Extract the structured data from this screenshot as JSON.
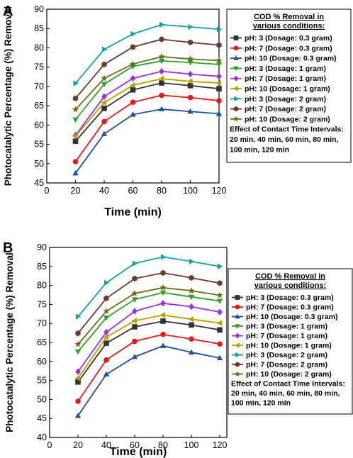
{
  "chart_data": [
    {
      "type": "line",
      "panel": "A",
      "xlabel": "Time (min)",
      "ylabel": "Photocatalytic Percentage (%) Removal",
      "xlim": [
        0,
        120
      ],
      "ylim": [
        45,
        90
      ],
      "xticks": [
        0,
        20,
        40,
        60,
        80,
        100,
        120
      ],
      "yticks": [
        45,
        50,
        55,
        60,
        65,
        70,
        75,
        80,
        85,
        90
      ],
      "grid": false,
      "legend_position": "right",
      "legend_title": [
        "COD % Removal in",
        "various conditions:"
      ],
      "legend_note": [
        "Effect of Contact Time Intervals:",
        "20 min, 40 min, 60 min, 80 min,",
        "100 min, 120 min"
      ],
      "x": [
        20,
        40,
        60,
        80,
        100,
        120
      ],
      "series": [
        {
          "name": "pH: 3 (Dosage: 0.3 gram)",
          "color": "#333333",
          "marker": "square",
          "values": [
            55.8,
            64.3,
            69.1,
            70.9,
            70.2,
            69.4
          ]
        },
        {
          "name": "pH: 7 (Dosage: 0.3 gram)",
          "color": "#e41a1c",
          "marker": "circle",
          "values": [
            50.5,
            60.9,
            65.9,
            67.7,
            67.1,
            66.3
          ]
        },
        {
          "name": "pH: 10 (Dosage: 0.3 gram)",
          "color": "#1f4e9e",
          "marker": "triangle-up",
          "values": [
            47.5,
            57.7,
            62.7,
            64.1,
            63.5,
            62.9
          ]
        },
        {
          "name": "pH: 3 (Dosage: 1 gram)",
          "color": "#2ca02c",
          "marker": "triangle-down",
          "values": [
            61.4,
            70.6,
            75.2,
            76.6,
            76.2,
            75.7
          ]
        },
        {
          "name": "pH: 7 (Dosage: 1 gram)",
          "color": "#9b30e0",
          "marker": "diamond",
          "values": [
            57.3,
            67.4,
            72.1,
            73.9,
            73.2,
            72.6
          ]
        },
        {
          "name": "pH: 10 (Dosage: 1 gram)",
          "color": "#b8a000",
          "marker": "triangle-left",
          "values": [
            57.1,
            65.8,
            70.3,
            72.0,
            71.3,
            70.9
          ]
        },
        {
          "name": "pH: 3 (Dosage: 2 gram)",
          "color": "#17a2a2",
          "marker": "triangle-right",
          "values": [
            70.8,
            79.6,
            83.6,
            86.0,
            85.4,
            84.8
          ]
        },
        {
          "name": "pH: 7 (Dosage: 2 gram)",
          "color": "#6b3b2e",
          "marker": "hexagon",
          "values": [
            66.9,
            75.7,
            80.2,
            82.2,
            81.4,
            80.7
          ]
        },
        {
          "name": "pH: 10 (Dosage: 2 gram)",
          "color": "#6b6b12",
          "marker": "star",
          "values": [
            64.0,
            72.1,
            75.8,
            77.7,
            77.1,
            76.7
          ]
        }
      ]
    },
    {
      "type": "line",
      "panel": "B",
      "xlabel": "Time (min)",
      "ylabel": "Photocatalytic Percentage (%) Removal",
      "xlim": [
        0,
        125
      ],
      "ylim": [
        40,
        90
      ],
      "xticks": [
        0,
        20,
        40,
        60,
        80,
        100,
        120
      ],
      "yticks": [
        40,
        45,
        50,
        55,
        60,
        65,
        70,
        75,
        80,
        85,
        90
      ],
      "grid": false,
      "legend_position": "right",
      "legend_title": [
        "COD % Removal in",
        "various conditions:"
      ],
      "legend_note": [
        "Effect of Contact Time Intervals:",
        "20 min, 40 min, 60 min, 80 min,",
        "100 min, 120 min"
      ],
      "x": [
        20,
        40,
        60,
        80,
        100,
        120
      ],
      "series": [
        {
          "name": "pH: 3 (Dosage: 0.3 gram)",
          "color": "#333333",
          "marker": "square",
          "values": [
            54.6,
            64.8,
            69.1,
            70.6,
            69.6,
            68.3
          ]
        },
        {
          "name": "pH: 7 (Dosage: 0.3 gram)",
          "color": "#e41a1c",
          "marker": "circle",
          "values": [
            49.5,
            60.4,
            65.3,
            67.1,
            65.9,
            64.6
          ]
        },
        {
          "name": "pH: 10 (Dosage: 0.3 gram)",
          "color": "#1f4e9e",
          "marker": "triangle-up",
          "values": [
            45.7,
            56.6,
            61.2,
            64.1,
            62.4,
            60.9
          ]
        },
        {
          "name": "pH: 3 (Dosage: 1 gram)",
          "color": "#2ca02c",
          "marker": "triangle-down",
          "values": [
            62.6,
            71.5,
            76.3,
            78.1,
            77.0,
            75.9
          ]
        },
        {
          "name": "pH: 7 (Dosage: 1 gram)",
          "color": "#9b30e0",
          "marker": "diamond",
          "values": [
            57.3,
            67.7,
            73.2,
            75.3,
            74.4,
            73.0
          ]
        },
        {
          "name": "pH: 10 (Dosage: 1 gram)",
          "color": "#b8a000",
          "marker": "triangle-left",
          "values": [
            55.6,
            66.4,
            70.7,
            72.2,
            71.1,
            70.1
          ]
        },
        {
          "name": "pH: 3 (Dosage: 2 gram)",
          "color": "#17a2a2",
          "marker": "triangle-right",
          "values": [
            71.8,
            80.7,
            85.8,
            87.5,
            86.3,
            85.0
          ]
        },
        {
          "name": "pH: 7 (Dosage: 2 gram)",
          "color": "#6b3b2e",
          "marker": "hexagon",
          "values": [
            67.4,
            76.6,
            81.8,
            83.3,
            82.0,
            80.6
          ]
        },
        {
          "name": "pH: 10 (Dosage: 2 gram)",
          "color": "#6b6b12",
          "marker": "star",
          "values": [
            64.5,
            73.2,
            77.9,
            79.4,
            78.6,
            77.4
          ]
        }
      ]
    }
  ]
}
